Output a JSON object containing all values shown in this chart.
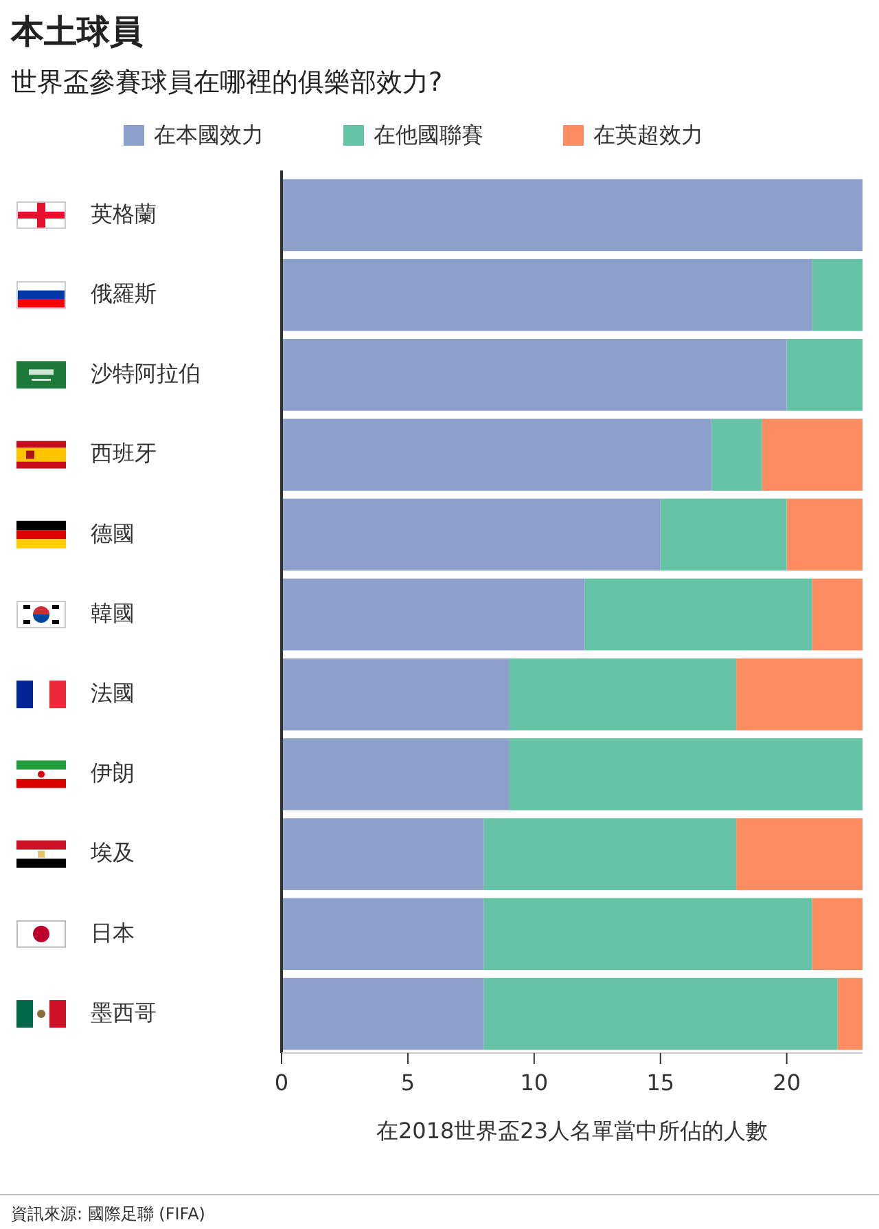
{
  "chart_data": {
    "type": "bar",
    "title": "本土球員",
    "subtitle": "世界盃參賽球員在哪裡的俱樂部效力?",
    "categories": [
      "英格蘭",
      "俄羅斯",
      "沙特阿拉伯",
      "西班牙",
      "德國",
      "韓國",
      "法國",
      "伊朗",
      "埃及",
      "日本",
      "墨西哥"
    ],
    "orientation": "horizontal",
    "stacked": true,
    "series": [
      {
        "name": "在本國效力",
        "color": "#8da0cb",
        "values": [
          23,
          21,
          20,
          17,
          15,
          12,
          9,
          9,
          8,
          8,
          8
        ]
      },
      {
        "name": "在他國聯賽",
        "color": "#66c2a5",
        "values": [
          0,
          2,
          3,
          2,
          5,
          9,
          9,
          14,
          10,
          13,
          14
        ]
      },
      {
        "name": "在英超效力",
        "color": "#fc8d62",
        "values": [
          0,
          0,
          0,
          4,
          3,
          2,
          5,
          0,
          5,
          2,
          1
        ]
      }
    ],
    "xlim": [
      0,
      23
    ],
    "xticks": [
      0,
      5,
      10,
      15,
      20
    ],
    "xlabel": "在2018世界盃23人名單當中所佔的人數",
    "legend": "top",
    "grid": false,
    "annotations": [
      "資訊來源: 國際足聯 (FIFA)"
    ]
  }
}
